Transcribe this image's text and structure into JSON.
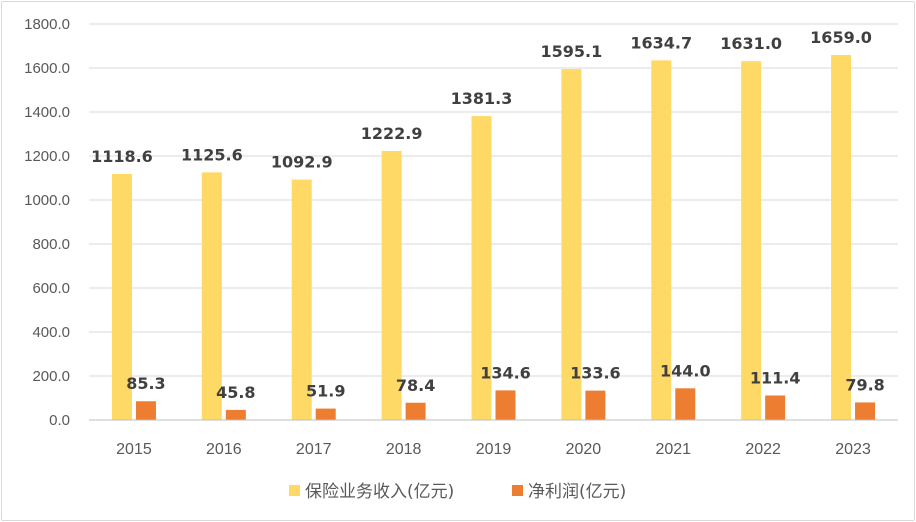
{
  "chart_data": {
    "type": "bar",
    "title": "",
    "xlabel": "",
    "ylabel": "",
    "categories": [
      "2015",
      "2016",
      "2017",
      "2018",
      "2019",
      "2020",
      "2021",
      "2022",
      "2023"
    ],
    "series": [
      {
        "name": "保险业务收入(亿元)",
        "color": "#ffd966",
        "values": [
          1118.6,
          1125.6,
          1092.9,
          1222.9,
          1381.3,
          1595.1,
          1634.7,
          1631.0,
          1659.0
        ],
        "labels": [
          "1118.6",
          "1125.6",
          "1092.9",
          "1222.9",
          "1381.3",
          "1595.1",
          "1634.7",
          "1631.0",
          "1659.0"
        ]
      },
      {
        "name": "净利润(亿元)",
        "color": "#ed7d31",
        "values": [
          85.3,
          45.8,
          51.9,
          78.4,
          134.6,
          133.6,
          144.0,
          111.4,
          79.8
        ],
        "labels": [
          "85.3",
          "45.8",
          "51.9",
          "78.4",
          "134.6",
          "133.6",
          "144.0",
          "111.4",
          "79.8"
        ]
      }
    ],
    "ylim": [
      0,
      1800
    ],
    "yticks": [
      "0.0",
      "200.0",
      "400.0",
      "600.0",
      "800.0",
      "1000.0",
      "1200.0",
      "1400.0",
      "1600.0",
      "1800.0"
    ],
    "grid": true,
    "legend": "bottom"
  }
}
